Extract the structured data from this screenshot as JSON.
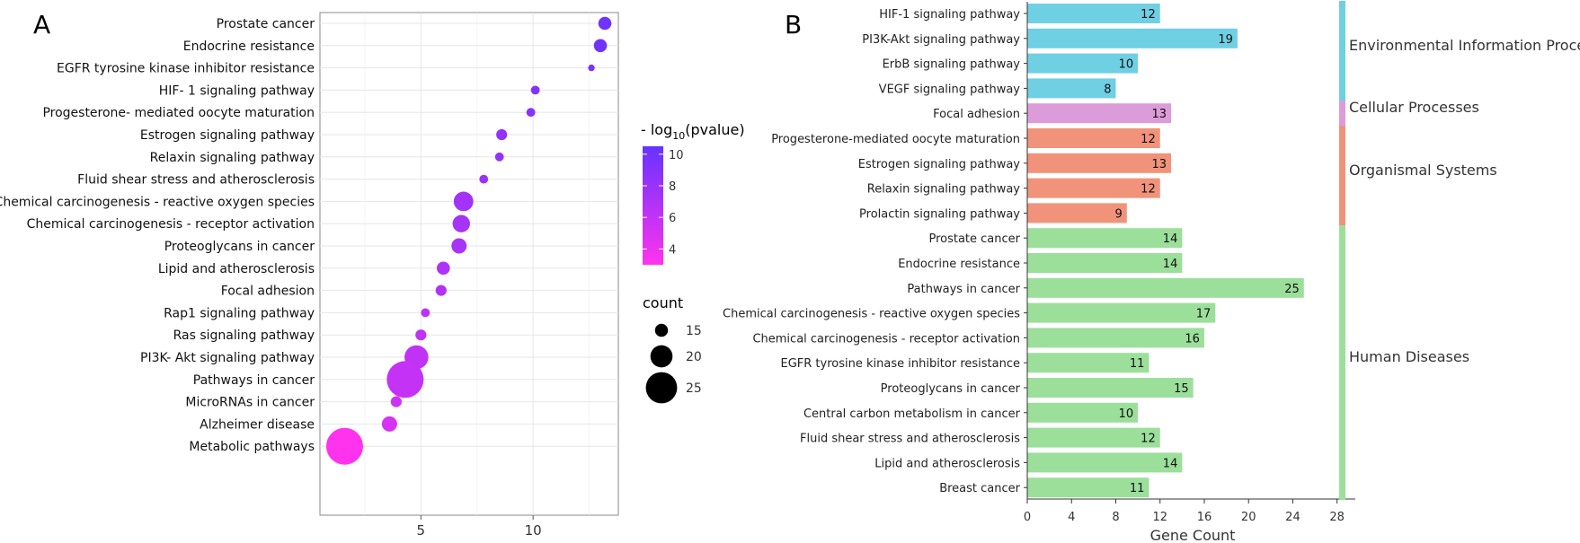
{
  "panel_a": {
    "letter": "A",
    "legend_color": {
      "title_prefix": "- log",
      "title_sub": "10",
      "title_suffix": "(pvalue)",
      "ticks": [
        4,
        6,
        8,
        10
      ],
      "range": [
        3,
        10.5
      ],
      "color_low": "#ff33ee",
      "color_high": "#6633ff"
    },
    "legend_size": {
      "title": "count",
      "ticks": [
        15,
        20,
        25
      ]
    }
  },
  "panel_b": {
    "letter": "B",
    "categories": [
      {
        "name": "Environmental Information Processing",
        "color": "#6fcfe3",
        "span": [
          0,
          3
        ]
      },
      {
        "name": "Cellular Processes",
        "color": "#dc9cd9",
        "span": [
          4,
          4
        ]
      },
      {
        "name": "Organismal Systems",
        "color": "#f0937a",
        "span": [
          5,
          8
        ]
      },
      {
        "name": "Human Diseases",
        "color": "#9bdf9b",
        "span": [
          9,
          19
        ]
      }
    ]
  },
  "chart_data": [
    {
      "type": "scatter",
      "title": "",
      "xlabel": "",
      "ylabel": "",
      "xlim": [
        0.5,
        13.8
      ],
      "xticks": [
        5,
        10
      ],
      "size_variable": "count",
      "color_variable": "-log10(pvalue)",
      "categories": [
        "Prostate cancer",
        "Endocrine resistance",
        "EGFR tyrosine kinase inhibitor resistance",
        "HIF- 1 signaling pathway",
        "Progesterone- mediated oocyte maturation",
        "Estrogen signaling pathway",
        "Relaxin signaling pathway",
        "Fluid shear stress and atherosclerosis",
        "Chemical carcinogenesis -  reactive oxygen species",
        "Chemical carcinogenesis -  receptor activation",
        "Proteoglycans in cancer",
        "Lipid and atherosclerosis",
        "Focal adhesion",
        "Rap1 signaling pathway",
        "Ras signaling pathway",
        "PI3K- Akt signaling pathway",
        "Pathways in cancer",
        "MicroRNAs in cancer",
        "Alzheimer disease",
        "Metabolic pathways"
      ],
      "x": [
        13.2,
        13.0,
        12.6,
        10.1,
        9.9,
        8.6,
        8.5,
        7.8,
        6.9,
        6.8,
        6.7,
        6.0,
        5.9,
        5.2,
        5.0,
        4.8,
        4.3,
        3.9,
        3.6,
        1.6
      ],
      "count": [
        14,
        14,
        11,
        12,
        12,
        13,
        12,
        12,
        17,
        16,
        15,
        14,
        13,
        12,
        13,
        19,
        25,
        13,
        15,
        25
      ],
      "neg_log10_pvalue": [
        10.0,
        10.0,
        9.5,
        9.0,
        8.9,
        8.3,
        8.3,
        8.0,
        7.5,
        7.4,
        7.3,
        6.9,
        6.8,
        6.3,
        6.2,
        6.1,
        5.9,
        5.4,
        5.0,
        3.0
      ]
    },
    {
      "type": "bar",
      "orientation": "horizontal",
      "title": "",
      "xlabel": "Gene Count",
      "ylabel": "",
      "xlim": [
        0,
        29
      ],
      "xticks": [
        0,
        4,
        8,
        12,
        16,
        20,
        24,
        28
      ],
      "categories": [
        "HIF-1 signaling pathway",
        "PI3K-Akt signaling pathway",
        "ErbB signaling pathway",
        "VEGF signaling pathway",
        "Focal adhesion",
        "Progesterone-mediated oocyte maturation",
        "Estrogen signaling pathway",
        "Relaxin signaling pathway",
        "Prolactin signaling pathway",
        "Prostate cancer",
        "Endocrine resistance",
        "Pathways in cancer",
        "Chemical carcinogenesis - reactive oxygen species",
        "Chemical carcinogenesis - receptor activation",
        "EGFR tyrosine kinase inhibitor resistance",
        "Proteoglycans in cancer",
        "Central carbon metabolism in cancer",
        "Fluid shear stress and atherosclerosis",
        "Lipid and atherosclerosis",
        "Breast cancer"
      ],
      "values": [
        12,
        19,
        10,
        8,
        13,
        12,
        13,
        12,
        9,
        14,
        14,
        25,
        17,
        16,
        11,
        15,
        10,
        12,
        14,
        11
      ],
      "groups": [
        "Environmental Information Processing",
        "Environmental Information Processing",
        "Environmental Information Processing",
        "Environmental Information Processing",
        "Cellular Processes",
        "Organismal Systems",
        "Organismal Systems",
        "Organismal Systems",
        "Organismal Systems",
        "Human Diseases",
        "Human Diseases",
        "Human Diseases",
        "Human Diseases",
        "Human Diseases",
        "Human Diseases",
        "Human Diseases",
        "Human Diseases",
        "Human Diseases",
        "Human Diseases",
        "Human Diseases"
      ]
    }
  ]
}
